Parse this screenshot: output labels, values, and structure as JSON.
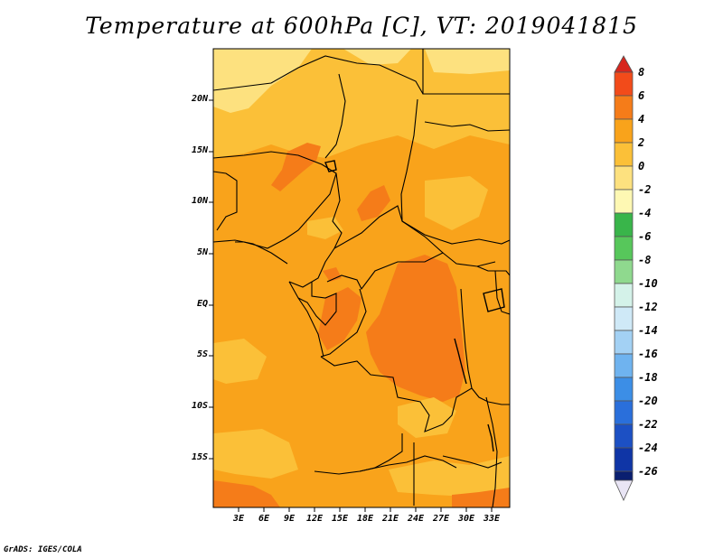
{
  "title": "Temperature at 600hPa [C], VT: 2019041815",
  "credit": "GrADS: IGES/COLA",
  "variable": "Temperature at 600hPa",
  "units": "C",
  "valid_time": "2019041815",
  "lat_labels": [
    "20N",
    "15N",
    "10N",
    "5N",
    "EQ",
    "5S",
    "10S",
    "15S"
  ],
  "lon_labels": [
    "3E",
    "6E",
    "9E",
    "12E",
    "15E",
    "18E",
    "21E",
    "24E",
    "27E",
    "30E",
    "33E"
  ],
  "colorbar": {
    "labels": [
      "8",
      "6",
      "4",
      "2",
      "0",
      "-2",
      "-4",
      "-6",
      "-8",
      "-10",
      "-12",
      "-14",
      "-16",
      "-18",
      "-20",
      "-22",
      "-24",
      "-26"
    ],
    "colors": [
      "#d7261e",
      "#f24b1a",
      "#f57c19",
      "#f9a31b",
      "#fbc038",
      "#fde17f",
      "#fef8b3",
      "#39b54a",
      "#57c75b",
      "#8fd98e",
      "#d4f2e9",
      "#cfe9f7",
      "#a3d1f4",
      "#6fb3ef",
      "#3c8ee6",
      "#2a6fdb",
      "#1c50c4",
      "#0f35a6",
      "#0a1f70",
      "#e9e5f5"
    ]
  },
  "field_colors": {
    "light": "#fde17f",
    "pale": "#fbc038",
    "base": "#f9a31b",
    "warm": "#f57c19",
    "hot": "#f24b1a"
  }
}
